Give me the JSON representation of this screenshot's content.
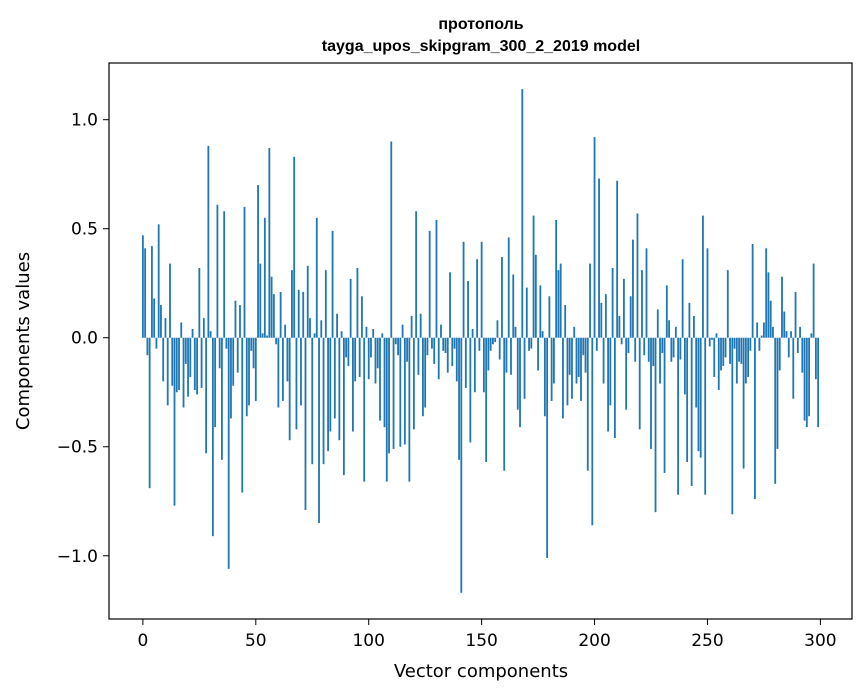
{
  "chart_data": {
    "type": "bar",
    "title": "протополь",
    "subtitle": "tayga_upos_skipgram_300_2_2019 model",
    "xlabel": "Vector components",
    "ylabel": "Components values",
    "xlim": [
      -15,
      314
    ],
    "ylim": [
      -1.29,
      1.26
    ],
    "xticks": [
      0,
      50,
      100,
      150,
      200,
      250,
      300
    ],
    "yticks": [
      -1.0,
      -0.5,
      0.0,
      0.5,
      1.0
    ],
    "ytick_labels": [
      "−1.0",
      "−0.5",
      "0.0",
      "0.5",
      "1.0"
    ],
    "bar_color": "#1f77b4",
    "grid": false,
    "values": [
      0.47,
      0.41,
      -0.08,
      -0.69,
      0.42,
      0.18,
      -0.05,
      0.52,
      0.15,
      -0.2,
      0.09,
      -0.31,
      0.34,
      -0.22,
      -0.77,
      -0.25,
      -0.24,
      0.07,
      -0.32,
      -0.12,
      -0.27,
      -0.18,
      0.04,
      -0.24,
      -0.26,
      0.32,
      -0.23,
      0.09,
      -0.53,
      0.88,
      0.03,
      -0.91,
      -0.41,
      0.61,
      -0.14,
      -0.56,
      0.58,
      -0.05,
      -1.06,
      -0.37,
      -0.22,
      0.17,
      -0.16,
      0.15,
      -0.71,
      0.6,
      -0.36,
      -0.31,
      -0.06,
      -0.14,
      -0.29,
      0.7,
      0.34,
      0.02,
      0.55,
      0.01,
      0.87,
      0.28,
      0.2,
      -0.03,
      -0.32,
      0.21,
      -0.29,
      0.06,
      -0.2,
      -0.47,
      0.31,
      0.83,
      -0.42,
      0.22,
      -0.31,
      0.21,
      -0.79,
      0.33,
      0.09,
      -0.58,
      0.02,
      0.55,
      -0.85,
      0.08,
      -0.58,
      0.31,
      -0.52,
      -0.43,
      0.49,
      -0.37,
      0.11,
      -0.47,
      0.03,
      -0.63,
      -0.09,
      -0.13,
      0.27,
      -0.43,
      -0.2,
      0.32,
      -0.18,
      0.19,
      -0.66,
      0.05,
      -0.19,
      -0.09,
      0.04,
      -0.21,
      -0.14,
      -0.38,
      0.02,
      -0.41,
      -0.66,
      -0.53,
      0.9,
      -0.51,
      -0.03,
      -0.08,
      -0.5,
      0.06,
      -0.49,
      -0.11,
      -0.66,
      0.1,
      -0.42,
      0.58,
      -0.17,
      0.11,
      -0.36,
      -0.32,
      -0.08,
      0.49,
      -0.05,
      -0.12,
      0.54,
      -0.19,
      0.06,
      -0.06,
      -0.07,
      -0.16,
      0.3,
      -0.13,
      -0.05,
      -0.2,
      -0.56,
      -1.17,
      0.44,
      -0.23,
      0.26,
      -0.48,
      0.04,
      -0.25,
      0.36,
      -0.06,
      0.44,
      -0.25,
      -0.57,
      -0.15,
      -0.06,
      -0.03,
      -0.02,
      0.08,
      -0.1,
      0.37,
      -0.61,
      -0.16,
      0.46,
      -0.17,
      0.29,
      0.05,
      -0.33,
      -0.41,
      1.14,
      -0.28,
      0.23,
      -0.06,
      -0.05,
      0.56,
      0.38,
      -0.15,
      0.24,
      0.03,
      -0.36,
      -1.01,
      0.19,
      -0.29,
      -0.21,
      0.54,
      0.31,
      0.34,
      -0.37,
      0.15,
      -0.31,
      -0.17,
      -0.28,
      0.05,
      -0.21,
      -0.18,
      -0.29,
      -0.08,
      -0.16,
      -0.61,
      0.34,
      -0.86,
      0.92,
      -0.06,
      0.73,
      0.16,
      -0.21,
      0.2,
      -0.43,
      -0.31,
      0.32,
      -0.46,
      0.72,
      0.1,
      -0.03,
      0.27,
      -0.33,
      -0.07,
      0.19,
      0.45,
      -0.11,
      0.57,
      -0.42,
      0.31,
      -0.08,
      0.41,
      -0.11,
      -0.51,
      -0.13,
      -0.8,
      0.13,
      -0.21,
      -0.07,
      -0.62,
      0.24,
      0.08,
      -0.11,
      -0.09,
      0.05,
      -0.72,
      -0.1,
      0.36,
      -0.26,
      -0.57,
      0.16,
      -0.68,
      0.1,
      -0.32,
      -0.52,
      -0.55,
      0.56,
      -0.72,
      0.41,
      -0.04,
      -0.01,
      -0.18,
      0.02,
      -0.24,
      -0.15,
      -0.13,
      -0.09,
      0.31,
      -0.12,
      -0.81,
      -0.05,
      -0.21,
      -0.11,
      -0.12,
      -0.6,
      -0.21,
      -0.18,
      -0.06,
      0.43,
      -0.74,
      0.07,
      -0.06,
      0.01,
      0.07,
      0.41,
      0.3,
      0.17,
      0.05,
      -0.67,
      -0.51,
      -0.15,
      0.28,
      0.12,
      0.03,
      -0.09,
      0.03,
      -0.28,
      0.21,
      -0.07,
      0.05,
      -0.16,
      -0.38,
      -0.41,
      -0.36,
      0.02,
      0.34,
      -0.19,
      -0.41
    ]
  }
}
